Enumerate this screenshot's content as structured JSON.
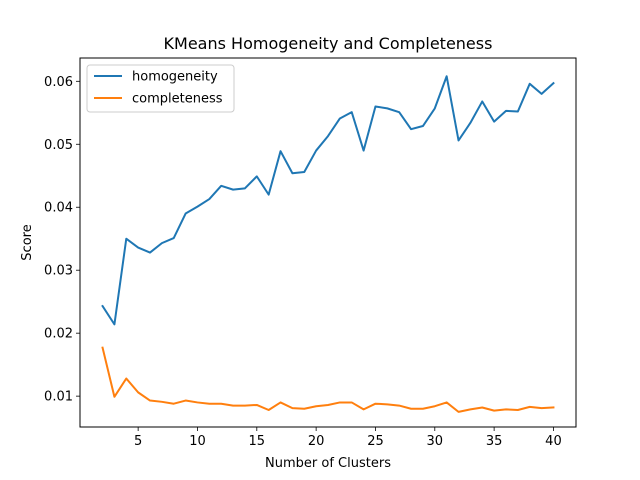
{
  "chart_data": {
    "type": "line",
    "title": "KMeans Homogeneity and Completeness",
    "xlabel": "Number of Clusters",
    "ylabel": "Score",
    "xlim": [
      0.1,
      41.9
    ],
    "ylim": [
      0.0051,
      0.0637
    ],
    "xticks": [
      5,
      10,
      15,
      20,
      25,
      30,
      35,
      40
    ],
    "yticks": [
      0.01,
      0.02,
      0.03,
      0.04,
      0.05,
      0.06
    ],
    "ytick_labels": [
      "0.01",
      "0.02",
      "0.03",
      "0.04",
      "0.05",
      "0.06"
    ],
    "grid": false,
    "legend_position": "top-left",
    "x": [
      2,
      3,
      4,
      5,
      6,
      7,
      8,
      9,
      10,
      11,
      12,
      13,
      14,
      15,
      16,
      17,
      18,
      19,
      20,
      21,
      22,
      23,
      24,
      25,
      26,
      27,
      28,
      29,
      30,
      31,
      32,
      33,
      34,
      35,
      36,
      37,
      38,
      39,
      40
    ],
    "series": [
      {
        "name": "homogeneity",
        "color": "#1f77b4",
        "values": [
          0.0243,
          0.0214,
          0.035,
          0.0336,
          0.0328,
          0.0343,
          0.0351,
          0.039,
          0.0401,
          0.0413,
          0.0434,
          0.0428,
          0.043,
          0.0449,
          0.042,
          0.0489,
          0.0454,
          0.0456,
          0.049,
          0.0513,
          0.0541,
          0.0551,
          0.049,
          0.056,
          0.0557,
          0.0551,
          0.0524,
          0.0529,
          0.0557,
          0.0608,
          0.0506,
          0.0534,
          0.0568,
          0.0536,
          0.0553,
          0.0552,
          0.0596,
          0.058,
          0.0597
        ]
      },
      {
        "name": "completeness",
        "color": "#ff7f0e",
        "values": [
          0.0177,
          0.0099,
          0.0128,
          0.0106,
          0.0093,
          0.0091,
          0.0088,
          0.0093,
          0.009,
          0.0088,
          0.0088,
          0.0085,
          0.0085,
          0.0086,
          0.0078,
          0.009,
          0.0081,
          0.008,
          0.0084,
          0.0086,
          0.009,
          0.009,
          0.0079,
          0.0088,
          0.0087,
          0.0085,
          0.008,
          0.008,
          0.0084,
          0.009,
          0.0075,
          0.0079,
          0.0082,
          0.0077,
          0.0079,
          0.0078,
          0.0083,
          0.0081,
          0.0082
        ]
      }
    ]
  }
}
